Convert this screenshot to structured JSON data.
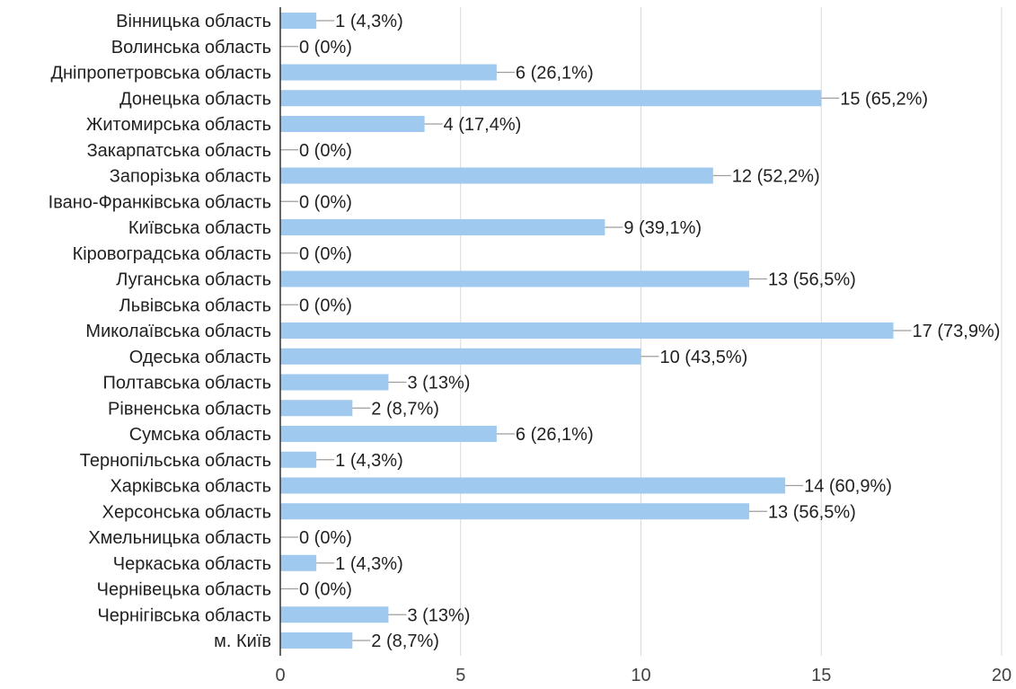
{
  "chart_data": {
    "type": "bar",
    "orientation": "horizontal",
    "title": "",
    "xlabel": "",
    "ylabel": "",
    "xlim": [
      0,
      20
    ],
    "xticks": [
      0,
      5,
      10,
      15,
      20
    ],
    "grid": true,
    "bar_color": "#9fc9ee",
    "categories": [
      "Вінницька область",
      "Волинська область",
      "Дніпропетровська область",
      "Донецька область",
      "Житомирська область",
      "Закарпатська область",
      "Запорізька область",
      "Івано-Франківська область",
      "Київська область",
      "Кіровоградська область",
      "Луганська область",
      "Львівська область",
      "Миколаївська область",
      "Одеська область",
      "Полтавська область",
      "Рівненська область",
      "Сумська область",
      "Тернопільська область",
      "Харківська область",
      "Херсонська область",
      "Хмельницька область",
      "Черкаська область",
      "Чернівецька область",
      "Чернігівська область",
      "м. Київ"
    ],
    "values": [
      1,
      0,
      6,
      15,
      4,
      0,
      12,
      0,
      9,
      0,
      13,
      0,
      17,
      10,
      3,
      2,
      6,
      1,
      14,
      13,
      0,
      1,
      0,
      3,
      2
    ],
    "data_labels": [
      "1 (4,3%)",
      "0 (0%)",
      "6 (26,1%)",
      "15 (65,2%)",
      "4 (17,4%)",
      "0 (0%)",
      "12 (52,2%)",
      "0 (0%)",
      "9 (39,1%)",
      "0 (0%)",
      "13 (56,5%)",
      "0 (0%)",
      "17 (73,9%)",
      "10 (43,5%)",
      "3 (13%)",
      "2 (8,7%)",
      "6 (26,1%)",
      "1 (4,3%)",
      "14 (60,9%)",
      "13 (56,5%)",
      "0 (0%)",
      "1 (4,3%)",
      "0 (0%)",
      "3 (13%)",
      "2 (8,7%)"
    ]
  }
}
